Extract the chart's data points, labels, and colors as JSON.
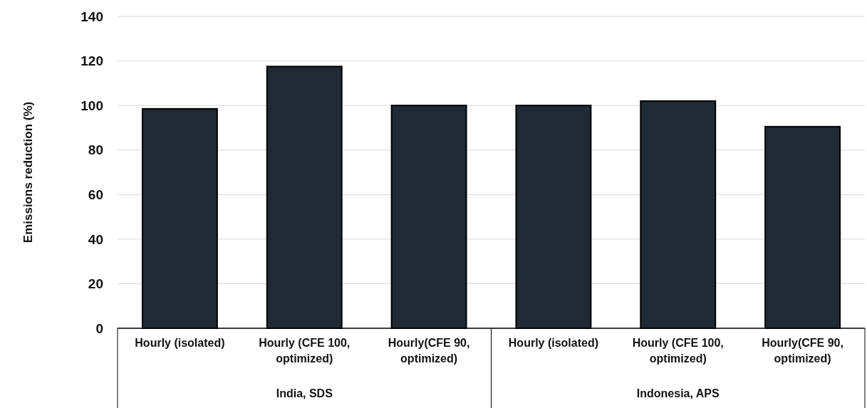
{
  "chart_data": {
    "type": "bar",
    "ylabel": "Emissions reduction (%)",
    "categories": [
      "Hourly (isolated)",
      "Hourly (CFE 100, optimized)",
      "Hourly(CFE 90, optimized)",
      "Hourly (isolated)",
      "Hourly (CFE 100, optimized)",
      "Hourly(CFE 90, optimized)"
    ],
    "values": [
      98.5,
      117.5,
      100,
      100,
      102,
      90.5
    ],
    "color": "#1f2a36",
    "ylim": [
      0,
      140
    ],
    "yticks": [
      0,
      20,
      40,
      60,
      80,
      100,
      120,
      140
    ],
    "grid": "y",
    "annotations": [
      "India, SDS",
      "Indonesia, APS"
    ]
  }
}
